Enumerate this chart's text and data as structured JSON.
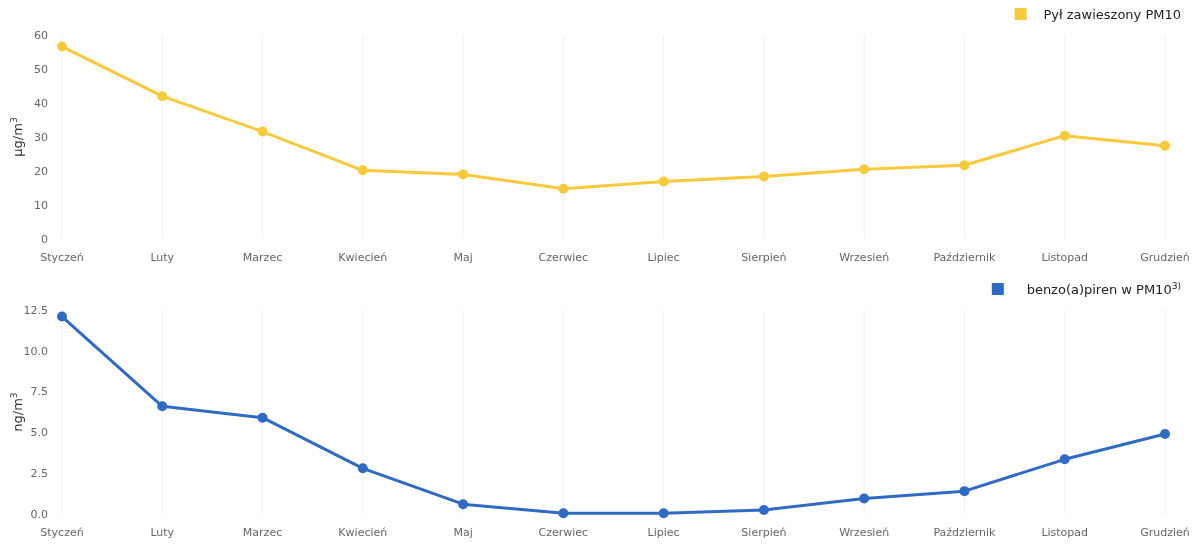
{
  "chart_data": [
    {
      "type": "line",
      "ylabel": "µg/m$^{3}$",
      "categories": [
        "Styczeń",
        "Luty",
        "Marzec",
        "Kwiecień",
        "Maj",
        "Czerwiec",
        "Lipiec",
        "Sierpień",
        "Wrzesień",
        "Październik",
        "Listopad",
        "Grudzień"
      ],
      "series": [
        {
          "name": "Pył zawieszony PM10",
          "color": "#f9c93c",
          "values": [
            56.6,
            42,
            31.6,
            20.2,
            19,
            14.8,
            16.9,
            18.4,
            20.5,
            21.7,
            30.4,
            27.4
          ]
        }
      ],
      "ylim": [
        0,
        60
      ],
      "yticks": [
        0,
        10,
        20,
        30,
        40,
        50,
        60
      ],
      "grid": "x",
      "legend": "top right",
      "marker": "circle"
    },
    {
      "type": "line",
      "ylabel": "ng/m$^{3}$",
      "categories": [
        "Styczeń",
        "Luty",
        "Marzec",
        "Kwiecień",
        "Maj",
        "Czerwiec",
        "Lipiec",
        "Sierpień",
        "Wrzesień",
        "Październik",
        "Listopad",
        "Grudzień"
      ],
      "series": [
        {
          "name": "benzo(a)piren w PM10$^{3)}$",
          "color": "#2f6bc4",
          "values": [
            12.1,
            6.6,
            5.9,
            2.8,
            0.6,
            0.05,
            0.05,
            0.25,
            0.95,
            1.4,
            3.35,
            4.9
          ]
        }
      ],
      "ylim": [
        0,
        12.5
      ],
      "yticks": [
        {
          "value": 0,
          "label": "0.0"
        },
        {
          "value": 2.5,
          "label": "2.5"
        },
        {
          "value": 5,
          "label": "5.0"
        },
        {
          "value": 7.5,
          "label": "7.5"
        },
        {
          "value": 10,
          "label": "10.0"
        },
        {
          "value": 12.5,
          "label": "12.5"
        }
      ],
      "grid": "x",
      "legend": "top right",
      "marker": "circle"
    }
  ]
}
